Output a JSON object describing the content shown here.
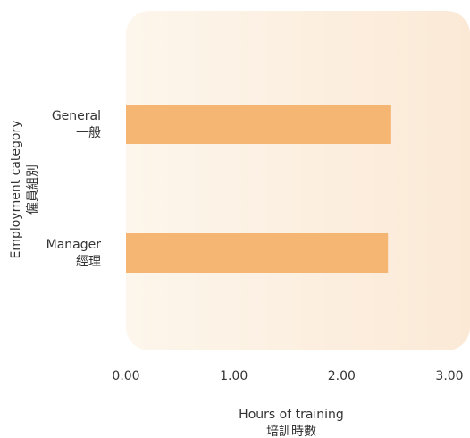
{
  "chart_data": {
    "type": "bar",
    "orientation": "horizontal",
    "categories": [
      {
        "en": "General",
        "zh": "一般"
      },
      {
        "en": "Manager",
        "zh": "經理"
      }
    ],
    "values": [
      2.46,
      2.43
    ],
    "xlim": [
      0,
      3
    ],
    "x_ticks": [
      "0.00",
      "1.00",
      "2.00",
      "3.00"
    ],
    "xlabel": {
      "en": "Hours of training",
      "zh": "培訓時數"
    },
    "ylabel": {
      "en": "Employment category",
      "zh": "僱員組別"
    },
    "grid": false,
    "legend": "none",
    "colors": {
      "bar": "#f5b673",
      "panel_left": "#fdf6ec",
      "panel_right": "#fbe9d6",
      "text": "#333333"
    }
  }
}
